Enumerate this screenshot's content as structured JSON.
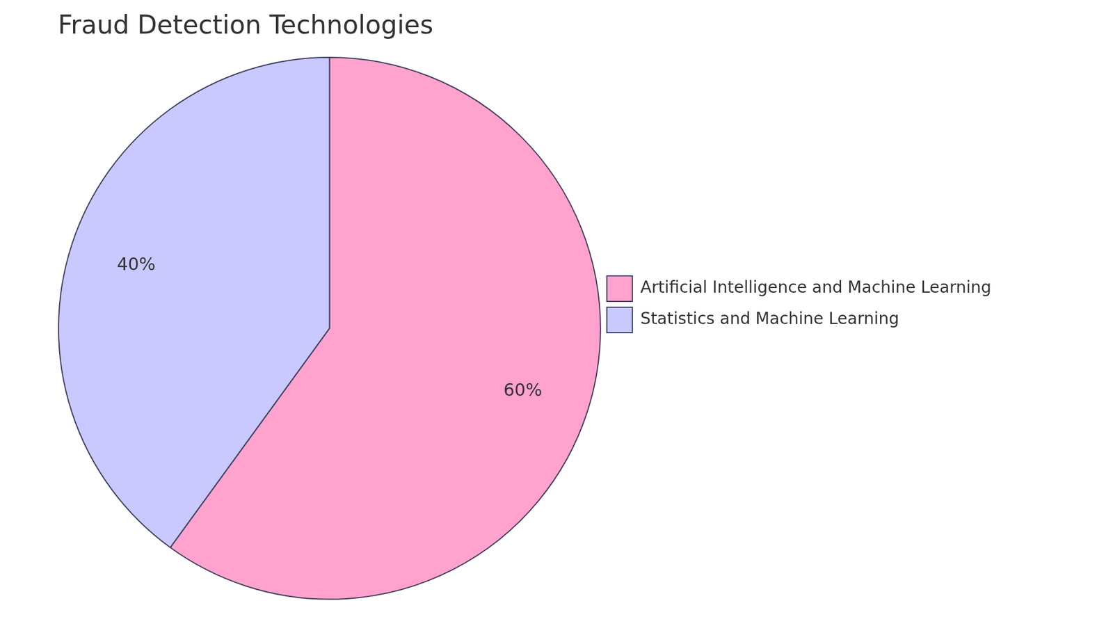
{
  "chart_data": {
    "type": "pie",
    "title": "Fraud Detection Technologies",
    "categories": [
      "Artificial Intelligence and Machine Learning",
      "Statistics and Machine Learning"
    ],
    "values": [
      60,
      40
    ],
    "value_labels": [
      "60%",
      "40%"
    ],
    "colors": [
      "#ffa3ce",
      "#c9c9ff"
    ],
    "data_labels": true,
    "legend": "right"
  }
}
